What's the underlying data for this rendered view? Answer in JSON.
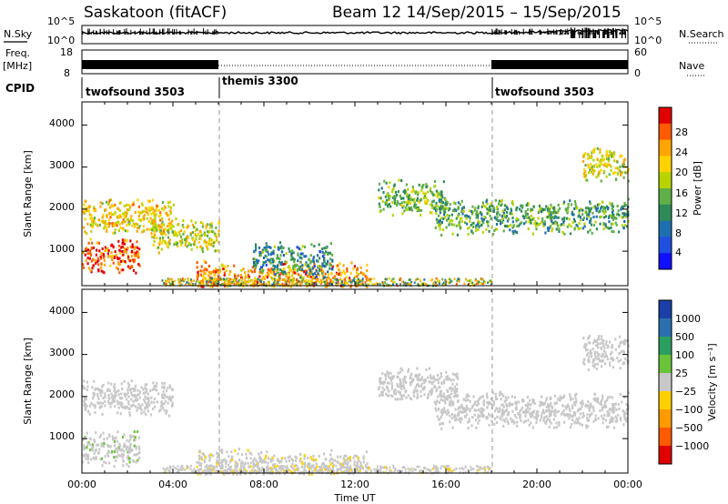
{
  "header": {
    "station": "Saskatoon (fitACF)",
    "beam_date": "Beam 12  14/Sep/2015 – 15/Sep/2015"
  },
  "strip1": {
    "left_label": "N.Sky",
    "left_top": "10^5",
    "left_bottom": "10^0",
    "right_top": "10^5",
    "right_bottom": "10^0",
    "right_label": "N.Search"
  },
  "strip2": {
    "left_label_1": "Freq.",
    "left_label_2": "[MHz]",
    "left_top": "18",
    "left_bottom": "8",
    "right_top": "60",
    "right_bottom": "0",
    "right_label": "Nave"
  },
  "cpid": {
    "label": "CPID",
    "segments": [
      "twofsound 3503",
      "themis 3300",
      "twofsound 3503"
    ]
  },
  "axes": {
    "ylabel": "Slant Range [km]",
    "xlabel": "Time UT",
    "yticks": [
      "4000",
      "3000",
      "2000",
      "1000"
    ],
    "xticks": [
      "00:00",
      "04:00",
      "08:00",
      "12:00",
      "16:00",
      "20:00",
      "00:00"
    ]
  },
  "colorbar_power": {
    "label": "Power [dB]",
    "ticks": [
      "28",
      "24",
      "20",
      "16",
      "12",
      "8",
      "4"
    ],
    "colors": [
      "#e00000",
      "#ff5a00",
      "#ffa500",
      "#ffd200",
      "#b8d400",
      "#5fb048",
      "#2e8b57",
      "#1e6fb0",
      "#1e50e0",
      "#1010ff"
    ]
  },
  "colorbar_velocity": {
    "label": "Velocity [m s⁻¹]",
    "ticks": [
      "1000",
      "500",
      "100",
      "25",
      "−25",
      "−100",
      "−500",
      "−1000"
    ],
    "colors": [
      "#1a3fa8",
      "#2c6fb0",
      "#2a9f5f",
      "#6ac43a",
      "#c8c8c8",
      "#ffd000",
      "#ff9a00",
      "#ff5a00",
      "#e00000"
    ]
  },
  "chart_data": [
    {
      "type": "heatmap",
      "title": "Power [dB]",
      "xlabel": "Time UT",
      "ylabel": "Slant Range [km]",
      "x_range": [
        "00:00",
        "00:00"
      ],
      "ylim": [
        180,
        4550
      ],
      "color_range": [
        0,
        30
      ],
      "bands": [
        {
          "t_start": 0.0,
          "t_end": 4.0,
          "range_km": 1850,
          "value": 20
        },
        {
          "t_start": 0.0,
          "t_end": 2.5,
          "range_km": 900,
          "value": 27
        },
        {
          "t_start": 3.0,
          "t_end": 6.0,
          "range_km": 1400,
          "value": 18
        },
        {
          "t_start": 5.0,
          "t_end": 12.5,
          "range_km": 350,
          "value": 24
        },
        {
          "t_start": 7.5,
          "t_end": 11.0,
          "range_km": 800,
          "value": 10
        },
        {
          "t_start": 13.0,
          "t_end": 16.0,
          "range_km": 2300,
          "value": 14
        },
        {
          "t_start": 15.5,
          "t_end": 24.0,
          "range_km": 1850,
          "value": 12
        },
        {
          "t_start": 22.0,
          "t_end": 24.0,
          "range_km": 3100,
          "value": 18
        }
      ]
    },
    {
      "type": "heatmap",
      "title": "Velocity [m s⁻¹]",
      "xlabel": "Time UT",
      "ylabel": "Slant Range [km]",
      "x_range": [
        "00:00",
        "00:00"
      ],
      "ylim": [
        180,
        4550
      ],
      "color_range": [
        -1000,
        1000
      ],
      "bands": [
        {
          "t_start": 0.0,
          "t_end": 4.0,
          "range_km": 2000,
          "value": 0
        },
        {
          "t_start": 0.0,
          "t_end": 2.5,
          "range_km": 800,
          "value": 80
        },
        {
          "t_start": 5.0,
          "t_end": 12.5,
          "range_km": 350,
          "value": -80
        },
        {
          "t_start": 13.0,
          "t_end": 16.5,
          "range_km": 2300,
          "value": 0
        },
        {
          "t_start": 15.5,
          "t_end": 24.0,
          "range_km": 1700,
          "value": 0
        },
        {
          "t_start": 22.0,
          "t_end": 24.0,
          "range_km": 3100,
          "value": 0
        }
      ]
    }
  ]
}
